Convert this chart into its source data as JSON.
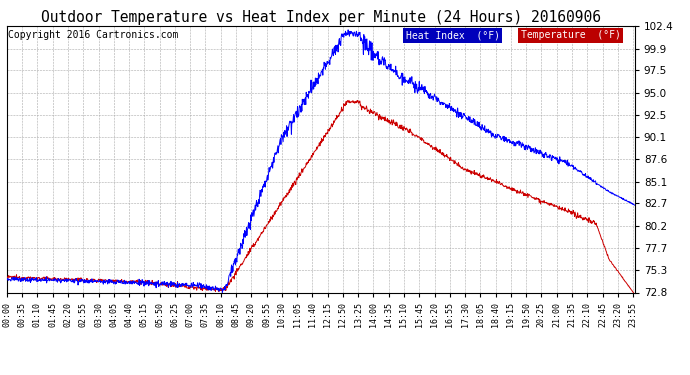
{
  "title": "Outdoor Temperature vs Heat Index per Minute (24 Hours) 20160906",
  "copyright": "Copyright 2016 Cartronics.com",
  "legend_heat_label": "Heat Index  (°F)",
  "legend_temp_label": "Temperature  (°F)",
  "heat_index_color": "#0000ff",
  "temp_color": "#cc0000",
  "legend_heat_bg": "#0000bb",
  "legend_temp_bg": "#bb0000",
  "background_color": "#ffffff",
  "grid_color": "#aaaaaa",
  "ylim_min": 72.8,
  "ylim_max": 102.4,
  "yticks": [
    72.8,
    75.3,
    77.7,
    80.2,
    82.7,
    85.1,
    87.6,
    90.1,
    92.5,
    95.0,
    97.5,
    99.9,
    102.4
  ],
  "title_fontsize": 10.5,
  "copyright_fontsize": 7,
  "tick_interval_min": 35
}
